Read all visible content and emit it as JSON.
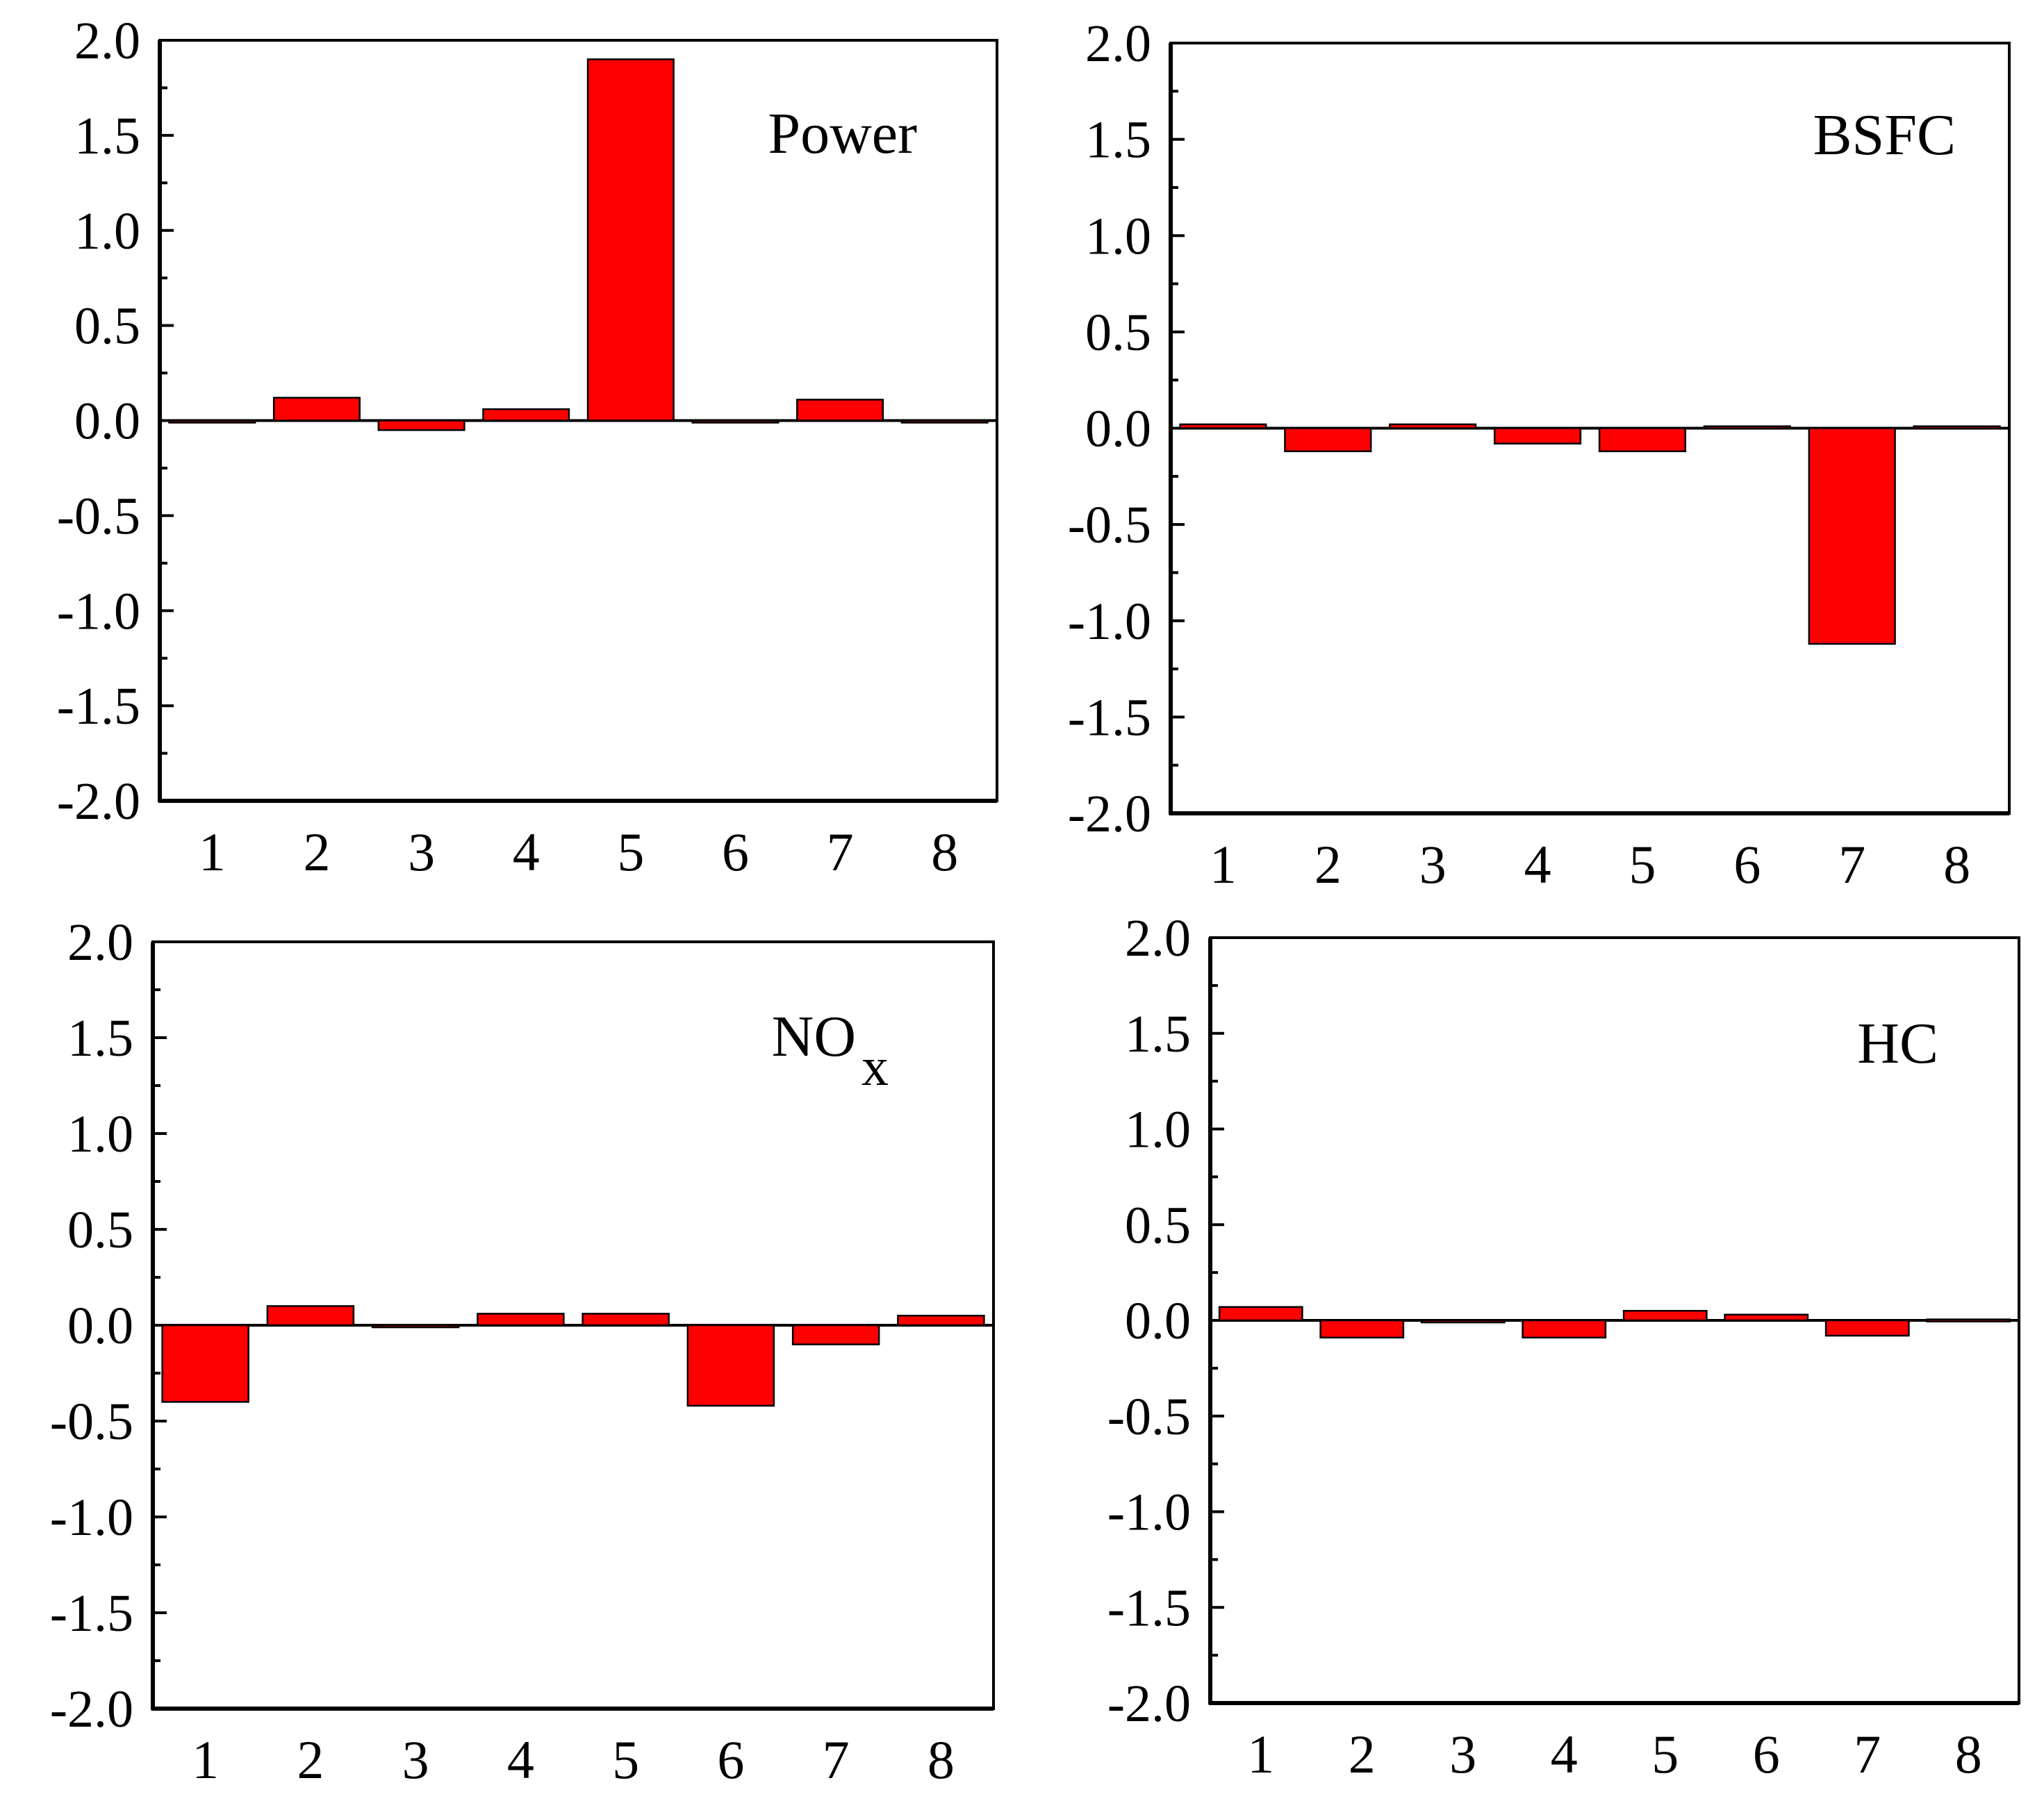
{
  "chart_data": [
    {
      "type": "bar",
      "title": "Power",
      "title_sub": "",
      "categories": [
        "1",
        "2",
        "3",
        "4",
        "5",
        "6",
        "7",
        "8"
      ],
      "values": [
        -0.01,
        0.12,
        -0.05,
        0.06,
        1.9,
        -0.01,
        0.11,
        -0.01
      ],
      "ylim": [
        -2.0,
        2.0
      ],
      "yticks": [
        "2.0",
        "1.5",
        "1.0",
        "0.5",
        "0.0",
        "-0.5",
        "-1.0",
        "-1.5",
        "-2.0"
      ],
      "xlabel": "",
      "ylabel": "",
      "bar_color": "#ff0000"
    },
    {
      "type": "bar",
      "title": "BSFC",
      "title_sub": "",
      "categories": [
        "1",
        "2",
        "3",
        "4",
        "5",
        "6",
        "7",
        "8"
      ],
      "values": [
        0.02,
        -0.12,
        0.02,
        -0.08,
        -0.12,
        0.01,
        -1.12,
        0.01
      ],
      "ylim": [
        -2.0,
        2.0
      ],
      "yticks": [
        "2.0",
        "1.5",
        "1.0",
        "0.5",
        "0.0",
        "-0.5",
        "-1.0",
        "-1.5",
        "-2.0"
      ],
      "xlabel": "",
      "ylabel": "",
      "bar_color": "#ff0000"
    },
    {
      "type": "bar",
      "title": "NO",
      "title_sub": "x",
      "categories": [
        "1",
        "2",
        "3",
        "4",
        "5",
        "6",
        "7",
        "8"
      ],
      "values": [
        -0.4,
        0.1,
        -0.01,
        0.06,
        0.06,
        -0.42,
        -0.1,
        0.05
      ],
      "ylim": [
        -2.0,
        2.0
      ],
      "yticks": [
        "2.0",
        "1.5",
        "1.0",
        "0.5",
        "0.0",
        "-0.5",
        "-1.0",
        "-1.5",
        "-2.0"
      ],
      "xlabel": "",
      "ylabel": "",
      "bar_color": "#ff0000"
    },
    {
      "type": "bar",
      "title": "HC",
      "title_sub": "",
      "categories": [
        "1",
        "2",
        "3",
        "4",
        "5",
        "6",
        "7",
        "8"
      ],
      "values": [
        0.07,
        -0.09,
        0.0,
        -0.09,
        0.05,
        0.03,
        -0.08,
        0.005
      ],
      "ylim": [
        -2.0,
        2.0
      ],
      "yticks": [
        "2.0",
        "1.5",
        "1.0",
        "0.5",
        "0.0",
        "-0.5",
        "-1.0",
        "-1.5",
        "-2.0"
      ],
      "xlabel": "",
      "ylabel": "",
      "bar_color": "#ff0000"
    }
  ]
}
